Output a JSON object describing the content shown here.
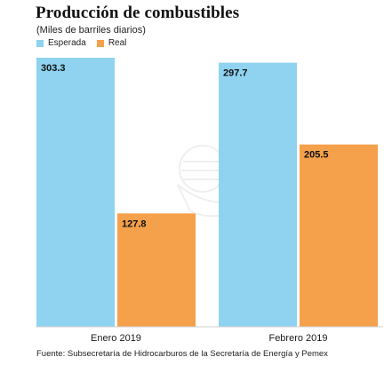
{
  "chart_data": {
    "type": "bar",
    "title": "Producción de combustibles",
    "subtitle": "(Miles de barriles diarios)",
    "categories": [
      "Enero 2019",
      "Febrero 2019"
    ],
    "series": [
      {
        "name": "Esperada",
        "color": "#8fd3f0",
        "values": [
          303.3,
          297.7
        ]
      },
      {
        "name": "Real",
        "color": "#f5a04a",
        "values": [
          127.8,
          205.5
        ]
      }
    ],
    "data_labels": [
      [
        "303.3",
        "297.7"
      ],
      [
        "127.8",
        "205.5"
      ]
    ],
    "ylim": [
      0,
      303.3
    ],
    "grid": false,
    "legend_position": "top-left",
    "source": "Fuente: Subsecretaría de Hidrocarburos de la Secretaría de Energía y Pemex"
  }
}
